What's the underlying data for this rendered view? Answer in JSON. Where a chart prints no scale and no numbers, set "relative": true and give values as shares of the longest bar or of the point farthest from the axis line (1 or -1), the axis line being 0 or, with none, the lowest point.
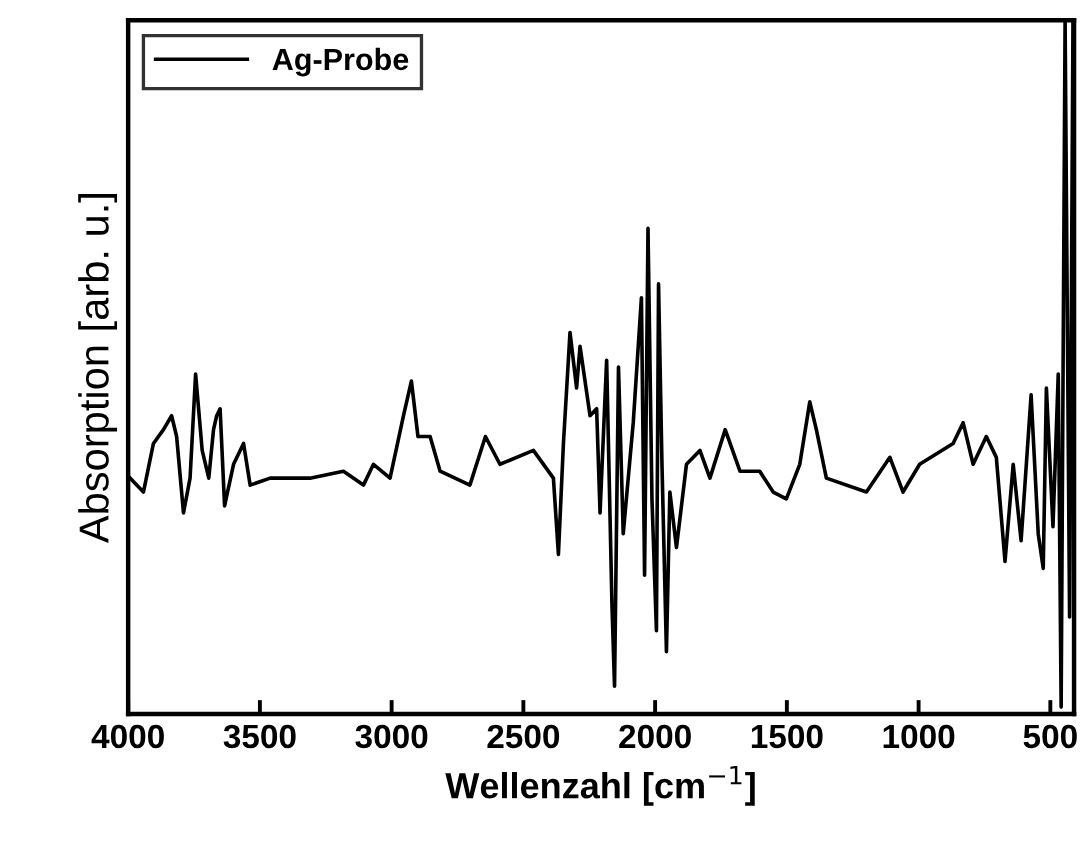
{
  "chart_data": {
    "type": "line",
    "xlabel": "Wellenzahl [cm$^{−1}$]",
    "ylabel": "Absorption [arb. u.]",
    "relative": true,
    "legend": "top left",
    "grid": false,
    "xlim": [
      4000,
      410
    ],
    "xticks": [
      4000,
      3500,
      3000,
      2500,
      2000,
      1500,
      1000,
      500
    ],
    "x": [
      3992,
      3942,
      3904,
      3866,
      3835,
      3816,
      3790,
      3765,
      3744,
      3719,
      3694,
      3676,
      3664,
      3651,
      3634,
      3600,
      3562,
      3537,
      3461,
      3310,
      3183,
      3107,
      3069,
      3006,
      2955,
      2925,
      2900,
      2854,
      2816,
      2703,
      2644,
      2589,
      2462,
      2386,
      2367,
      2348,
      2323,
      2298,
      2285,
      2247,
      2222,
      2209,
      2184,
      2164,
      2154,
      2139,
      2121,
      2083,
      2052,
      2040,
      2027,
      2012,
      1995,
      1987,
      1974,
      1957,
      1944,
      1919,
      1881,
      1830,
      1792,
      1734,
      1678,
      1603,
      1552,
      1502,
      1451,
      1413,
      1388,
      1350,
      1198,
      1109,
      1059,
      996,
      869,
      831,
      793,
      743,
      705,
      672,
      641,
      611,
      573,
      546,
      527,
      515,
      490,
      470,
      459,
      444,
      427,
      414
    ],
    "series": [
      {
        "name": "Ag-Probe",
        "color": "#000000",
        "values": [
          0.34,
          0.32,
          0.39,
          0.41,
          0.43,
          0.4,
          0.29,
          0.34,
          0.49,
          0.38,
          0.34,
          0.41,
          0.43,
          0.44,
          0.3,
          0.36,
          0.39,
          0.33,
          0.34,
          0.34,
          0.35,
          0.33,
          0.36,
          0.34,
          0.43,
          0.48,
          0.4,
          0.4,
          0.35,
          0.33,
          0.4,
          0.36,
          0.38,
          0.34,
          0.23,
          0.39,
          0.55,
          0.47,
          0.53,
          0.43,
          0.44,
          0.29,
          0.51,
          0.16,
          0.04,
          0.5,
          0.26,
          0.42,
          0.6,
          0.2,
          0.7,
          0.31,
          0.12,
          0.62,
          0.36,
          0.09,
          0.32,
          0.24,
          0.36,
          0.38,
          0.34,
          0.41,
          0.35,
          0.35,
          0.32,
          0.31,
          0.36,
          0.45,
          0.41,
          0.34,
          0.32,
          0.37,
          0.32,
          0.36,
          0.39,
          0.42,
          0.36,
          0.4,
          0.37,
          0.22,
          0.36,
          0.25,
          0.46,
          0.26,
          0.21,
          0.47,
          0.27,
          0.49,
          0.01,
          1.0,
          0.14,
          1.0
        ]
      }
    ]
  }
}
